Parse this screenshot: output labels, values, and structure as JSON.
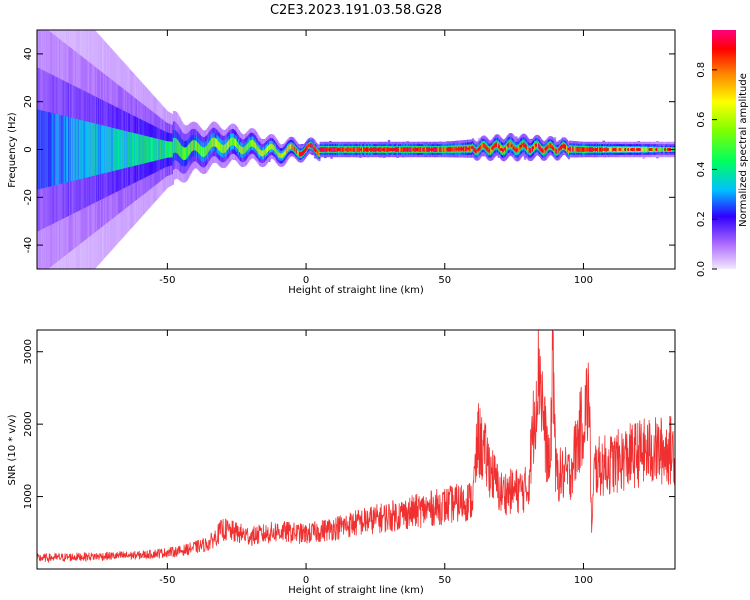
{
  "title": "C2E3.2023.191.03.58.G28",
  "chart_data": [
    {
      "type": "heatmap",
      "xlabel": "Height of straight line (km)",
      "ylabel": "Frequency (Hz)",
      "xlim": [
        -97,
        133
      ],
      "ylim": [
        -50,
        50
      ],
      "xticks": [
        -50,
        0,
        50,
        100
      ],
      "yticks": [
        -40,
        -20,
        0,
        20,
        40
      ],
      "colorbar": {
        "label": "Normalized spectral amplitude",
        "range": [
          0,
          1
        ],
        "ticks": [
          "0.0",
          "0.2",
          "0.4",
          "0.6",
          "0.8"
        ]
      },
      "description_points": [
        {
          "x": -97,
          "center_hz": 0,
          "spread_hz": 48,
          "peak_amp": 0.25
        },
        {
          "x": -50,
          "center_hz": 0,
          "spread_hz": 10,
          "peak_amp": 0.45
        },
        {
          "x": -40,
          "center_hz": 0,
          "spread_hz": 6,
          "peak_amp": 0.55
        },
        {
          "x": -30,
          "center_hz": 2,
          "spread_hz": 5,
          "peak_amp": 0.6
        },
        {
          "x": -20,
          "center_hz": 1,
          "spread_hz": 4,
          "peak_amp": 0.6
        },
        {
          "x": -10,
          "center_hz": -1,
          "spread_hz": 3,
          "peak_amp": 0.65
        },
        {
          "x": 0,
          "center_hz": 0,
          "spread_hz": 2,
          "peak_amp": 0.9
        },
        {
          "x": 50,
          "center_hz": 0,
          "spread_hz": 2,
          "peak_amp": 0.9
        },
        {
          "x": 75,
          "center_hz": 1,
          "spread_hz": 3,
          "peak_amp": 0.85
        },
        {
          "x": 100,
          "center_hz": 0,
          "spread_hz": 2,
          "peak_amp": 0.9
        },
        {
          "x": 133,
          "center_hz": 0,
          "spread_hz": 2,
          "peak_amp": 0.5
        }
      ]
    },
    {
      "type": "line",
      "xlabel": "Height of straight line (km)",
      "ylabel": "SNR (10 * v/v)",
      "xlim": [
        -97,
        133
      ],
      "ylim": [
        0,
        3300
      ],
      "xticks": [
        -50,
        0,
        50,
        100
      ],
      "yticks": [
        1000,
        2000,
        3000
      ],
      "color": "#f03030",
      "series": [
        {
          "x": [
            -97,
            -80,
            -60,
            -45,
            -35,
            -30,
            -20,
            -10,
            0,
            20,
            40,
            60,
            62,
            70,
            80,
            84,
            86,
            88,
            89,
            90,
            95,
            102,
            103,
            104,
            110,
            120,
            133
          ],
          "y": [
            150,
            170,
            190,
            250,
            350,
            550,
            450,
            520,
            480,
            650,
            800,
            950,
            1800,
            1050,
            1100,
            2900,
            1900,
            1300,
            3200,
            1300,
            1300,
            2400,
            500,
            1400,
            1450,
            1600,
            1650
          ]
        }
      ]
    }
  ]
}
